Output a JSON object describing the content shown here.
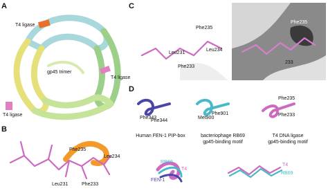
{
  "panels": {
    "a": {
      "label": "A",
      "labels": [
        "T4 ligase",
        "gp45 trimer",
        "T4 ligase",
        "T4 ligase"
      ]
    },
    "b": {
      "label": "B",
      "labels": [
        "Phe235",
        "Leu234",
        "Leu231",
        "Phe233"
      ]
    },
    "c": {
      "label": "C",
      "labels": [
        "Phe235",
        "Leu231",
        "Leu234",
        "Phe233",
        "Phe235",
        "233"
      ]
    },
    "d": {
      "label": "D",
      "residues": [
        "Phe343",
        "Phe344",
        "Met900",
        "Phe901",
        "Phe235",
        "Phe233"
      ],
      "captions": [
        [
          "Human FEN-1 PIP-box"
        ],
        [
          "bacteriophage RB69",
          "gp45-binding motif"
        ],
        [
          "T4 DNA ligase",
          "gp45-binding motif"
        ]
      ],
      "overlay_labels": [
        "RB69",
        "T4",
        "FEN-1",
        "T4",
        "RB69"
      ]
    }
  }
}
